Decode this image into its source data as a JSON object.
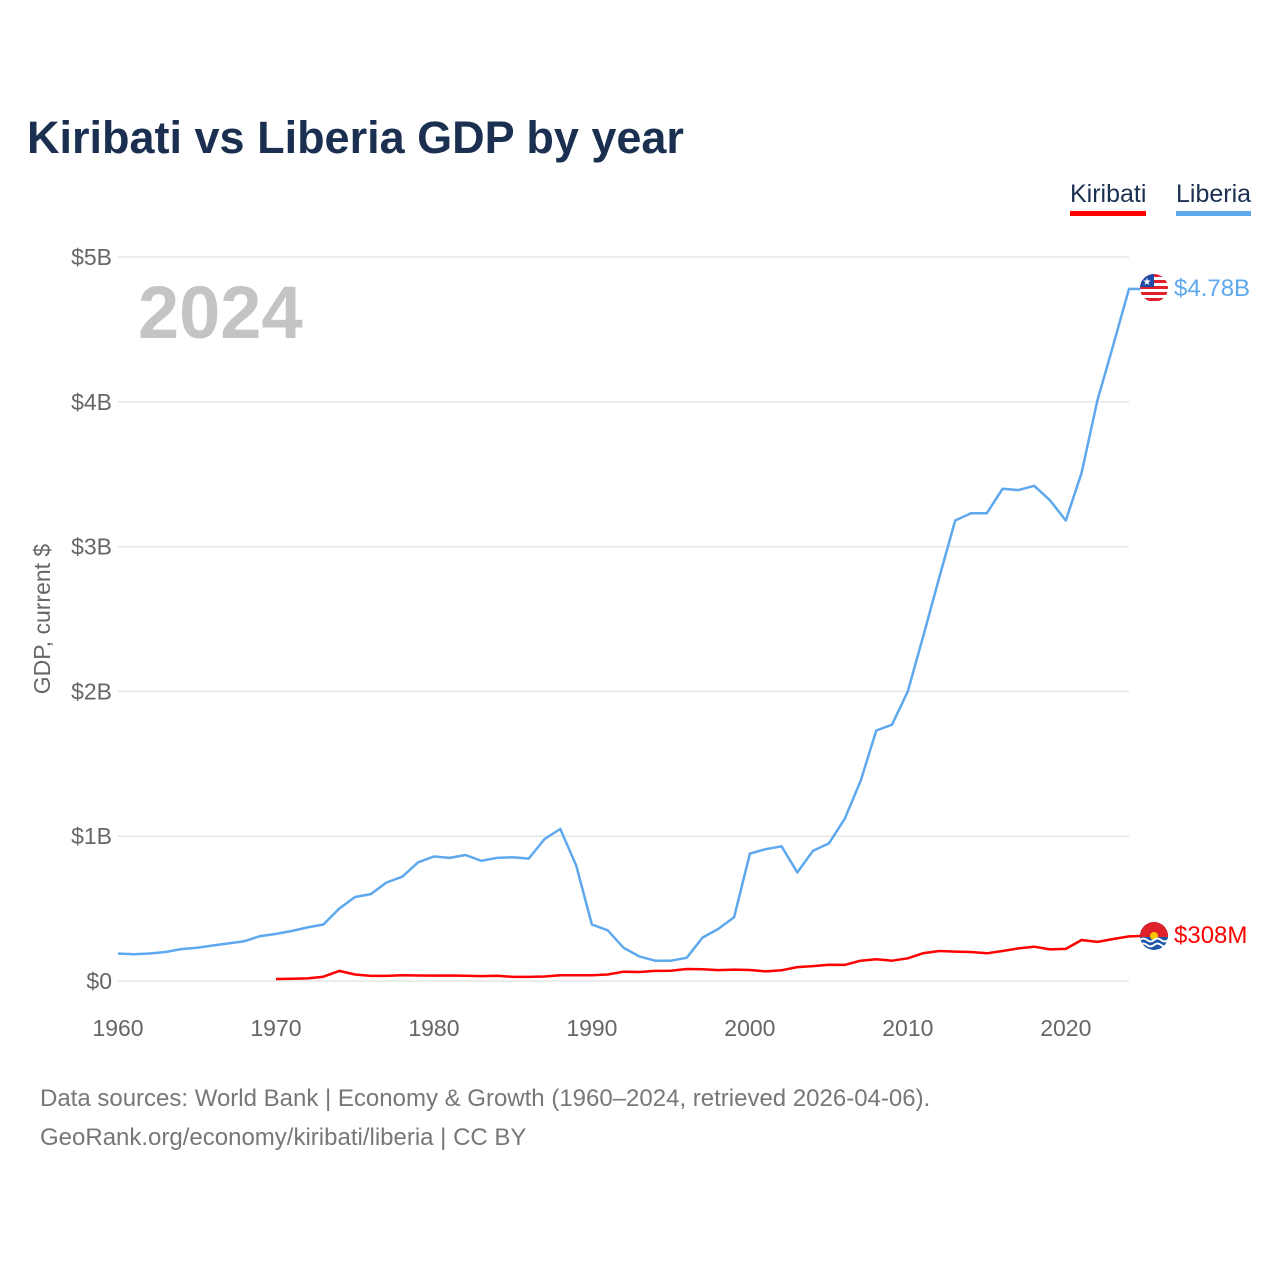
{
  "title": "Kiribati vs Liberia GDP by year",
  "year_watermark": "2024",
  "footer": {
    "line1": "Data sources: World Bank | Economy & Growth (1960–2024, retrieved 2026-04-06).",
    "line2": "GeoRank.org/economy/kiribati/liberia | CC BY"
  },
  "chart_data": {
    "type": "line",
    "title": "Kiribati vs Liberia GDP by year",
    "xlabel": "",
    "ylabel": "GDP, current $",
    "xlim": [
      1960,
      2024
    ],
    "ylim": [
      0,
      5
    ],
    "y_unit": "billions USD",
    "x_ticks": [
      "1960",
      "1970",
      "1980",
      "1990",
      "2000",
      "2010",
      "2020"
    ],
    "y_ticks": [
      {
        "v": 0,
        "label": "$0"
      },
      {
        "v": 1,
        "label": "$1B"
      },
      {
        "v": 2,
        "label": "$2B"
      },
      {
        "v": 3,
        "label": "$3B"
      },
      {
        "v": 4,
        "label": "$4B"
      },
      {
        "v": 5,
        "label": "$5B"
      }
    ],
    "grid": true,
    "legend_position": "top-right",
    "series": [
      {
        "name": "Kiribati",
        "color": "#ff0000",
        "start_year": 1970,
        "end_label": "$308M",
        "flag": "kiribati-flag-icon",
        "values": [
          0.014,
          0.016,
          0.018,
          0.03,
          0.07,
          0.045,
          0.035,
          0.035,
          0.04,
          0.038,
          0.037,
          0.038,
          0.036,
          0.034,
          0.036,
          0.028,
          0.028,
          0.031,
          0.04,
          0.04,
          0.04,
          0.045,
          0.064,
          0.062,
          0.07,
          0.071,
          0.083,
          0.081,
          0.075,
          0.079,
          0.076,
          0.066,
          0.074,
          0.096,
          0.103,
          0.112,
          0.111,
          0.14,
          0.15,
          0.14,
          0.157,
          0.193,
          0.207,
          0.203,
          0.2,
          0.191,
          0.207,
          0.225,
          0.237,
          0.218,
          0.222,
          0.283,
          0.27,
          0.29,
          0.308
        ]
      },
      {
        "name": "Liberia",
        "color": "#5ea8ee",
        "start_year": 1960,
        "end_label": "$4.78B",
        "flag": "liberia-flag-icon",
        "values": [
          0.19,
          0.185,
          0.19,
          0.2,
          0.22,
          0.23,
          0.245,
          0.26,
          0.275,
          0.31,
          0.325,
          0.345,
          0.37,
          0.39,
          0.5,
          0.58,
          0.6,
          0.68,
          0.72,
          0.82,
          0.86,
          0.85,
          0.87,
          0.83,
          0.85,
          0.855,
          0.845,
          0.98,
          1.05,
          0.8,
          0.39,
          0.35,
          0.23,
          0.17,
          0.14,
          0.14,
          0.16,
          0.3,
          0.36,
          0.44,
          0.88,
          0.91,
          0.93,
          0.75,
          0.9,
          0.95,
          1.12,
          1.38,
          1.73,
          1.77,
          2.0,
          2.39,
          2.79,
          3.18,
          3.23,
          3.23,
          3.4,
          3.39,
          3.42,
          3.32,
          3.18,
          3.51,
          4.01,
          4.39,
          4.78
        ]
      }
    ]
  }
}
